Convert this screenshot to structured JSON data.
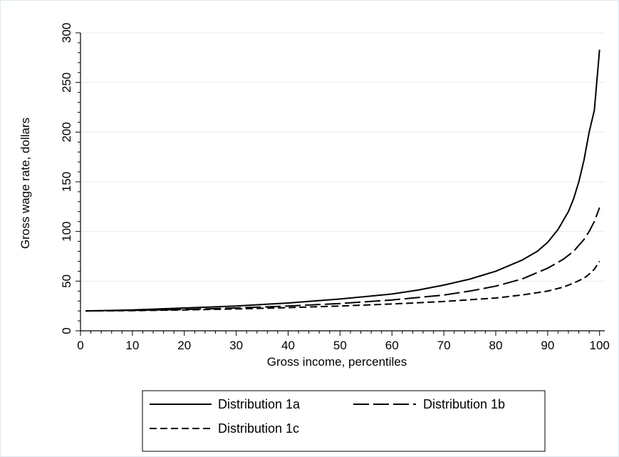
{
  "chart_data": {
    "type": "line",
    "title": "",
    "xlabel": "Gross income, percentiles",
    "ylabel": "Gross wage rate, dollars",
    "xlim": [
      0,
      101
    ],
    "ylim": [
      0,
      300
    ],
    "x_ticks": [
      0,
      10,
      20,
      30,
      40,
      50,
      60,
      70,
      80,
      90,
      100
    ],
    "y_ticks": [
      0,
      50,
      100,
      150,
      200,
      250,
      300
    ],
    "grid": "horizontal",
    "legend_position": "bottom",
    "series": [
      {
        "name": "Distribution 1a",
        "style": "solid",
        "x": [
          1,
          10,
          20,
          30,
          40,
          50,
          60,
          65,
          70,
          75,
          80,
          85,
          88,
          90,
          92,
          94,
          95,
          96,
          97,
          98,
          99,
          100
        ],
        "y": [
          20,
          21,
          23,
          25,
          28,
          32,
          37,
          41,
          46,
          52,
          60,
          71,
          80,
          89,
          102,
          120,
          133,
          150,
          172,
          200,
          222,
          283
        ]
      },
      {
        "name": "Distribution 1b",
        "style": "longdash",
        "x": [
          1,
          10,
          20,
          30,
          40,
          50,
          60,
          70,
          75,
          80,
          85,
          90,
          93,
          95,
          97,
          98,
          99,
          100
        ],
        "y": [
          20,
          20.5,
          21.5,
          23,
          25,
          27.5,
          31,
          36,
          40,
          45,
          52,
          63,
          72,
          80,
          92,
          100,
          110,
          124
        ]
      },
      {
        "name": "Distribution 1c",
        "style": "shortdash",
        "x": [
          1,
          10,
          20,
          30,
          40,
          50,
          60,
          70,
          80,
          85,
          90,
          93,
          95,
          97,
          98,
          99,
          100
        ],
        "y": [
          20,
          20.3,
          21,
          22,
          23.3,
          25,
          27,
          29.5,
          33,
          36,
          40,
          44,
          48,
          53,
          57,
          62,
          70
        ]
      }
    ]
  }
}
